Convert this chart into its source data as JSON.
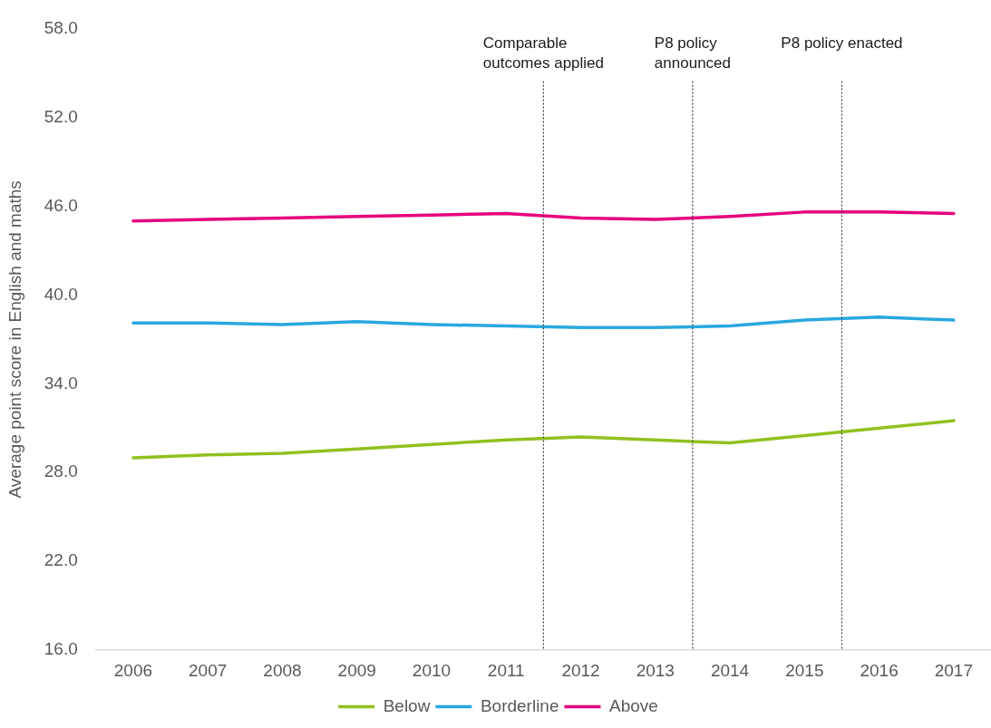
{
  "chart_data": {
    "type": "line",
    "x": [
      2006,
      2007,
      2008,
      2009,
      2010,
      2011,
      2012,
      2013,
      2014,
      2015,
      2016,
      2017
    ],
    "xlim": [
      2005.5,
      2017.5
    ],
    "xticks": [
      2006,
      2007,
      2008,
      2009,
      2010,
      2011,
      2012,
      2013,
      2014,
      2015,
      2016,
      2017
    ],
    "ylim": [
      16,
      58
    ],
    "yticks": [
      {
        "value": 16,
        "label": "16.0"
      },
      {
        "value": 22,
        "label": "22.0"
      },
      {
        "value": 28,
        "label": "28.0"
      },
      {
        "value": 34,
        "label": "34.0"
      },
      {
        "value": 40,
        "label": "40.0"
      },
      {
        "value": 46,
        "label": "46.0"
      },
      {
        "value": 52,
        "label": "52.0"
      },
      {
        "value": 58,
        "label": "58.0"
      }
    ],
    "ylabel": "Average point score in English and maths",
    "grid": false,
    "legend": "bottom",
    "line_style": "solid",
    "series": [
      {
        "name": "Below",
        "color": "#92c01f",
        "values": [
          29.0,
          29.2,
          29.3,
          29.6,
          29.9,
          30.2,
          30.4,
          30.2,
          30.0,
          30.5,
          31.0,
          31.5
        ]
      },
      {
        "name": "Borderline",
        "color": "#29a8e0",
        "values": [
          38.1,
          38.1,
          38.0,
          38.2,
          38.0,
          37.9,
          37.8,
          37.8,
          37.9,
          38.3,
          38.5,
          38.3
        ]
      },
      {
        "name": "Above",
        "color": "#e6007e",
        "values": [
          45.0,
          45.1,
          45.2,
          45.3,
          45.4,
          45.5,
          45.2,
          45.1,
          45.3,
          45.6,
          45.6,
          45.5
        ]
      }
    ],
    "ref_lines": [
      {
        "axis": "x",
        "value": 2011.5,
        "label": "Comparable outcomes applied",
        "color": "#404040",
        "line_style": "dotted"
      },
      {
        "axis": "x",
        "value": 2013.5,
        "label": "P8 policy announced",
        "color": "#404040",
        "line_style": "dotted"
      },
      {
        "axis": "x",
        "value": 2015.5,
        "label": "P8 policy enacted",
        "color": "#404040",
        "line_style": "dotted"
      }
    ]
  }
}
